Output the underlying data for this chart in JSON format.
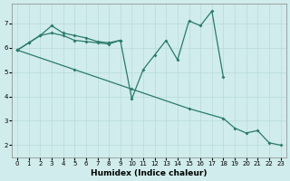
{
  "xlabel": "Humidex (Indice chaleur)",
  "bg_color": "#d0ecec",
  "grid_color": "#b8dada",
  "line_color": "#2a7a6a",
  "xlim": [
    -0.5,
    23.5
  ],
  "ylim": [
    1.5,
    7.8
  ],
  "yticks": [
    2,
    3,
    4,
    5,
    6,
    7
  ],
  "xticks": [
    0,
    1,
    2,
    3,
    4,
    5,
    6,
    7,
    8,
    9,
    10,
    11,
    12,
    13,
    14,
    15,
    16,
    17,
    18,
    19,
    20,
    21,
    22,
    23
  ],
  "line1_x": [
    0,
    1,
    2,
    3,
    4,
    5,
    6,
    7,
    8,
    9,
    10,
    11,
    12,
    13,
    14,
    15,
    16,
    17,
    18
  ],
  "line1_y": [
    5.9,
    6.2,
    6.5,
    6.9,
    6.6,
    6.5,
    6.4,
    6.25,
    6.2,
    6.3,
    3.9,
    5.1,
    5.7,
    6.3,
    5.5,
    7.1,
    6.9,
    7.5,
    4.8
  ],
  "line2_x": [
    0,
    5,
    10,
    15,
    18,
    19,
    20,
    21,
    22,
    23
  ],
  "line2_y": [
    5.9,
    5.1,
    4.3,
    3.5,
    3.1,
    2.7,
    2.5,
    2.6,
    2.1,
    2.0
  ],
  "line3_x": [
    0,
    1,
    2,
    3,
    4,
    5,
    6,
    7,
    8,
    9
  ],
  "line3_y": [
    5.9,
    6.2,
    6.5,
    6.6,
    6.5,
    6.3,
    6.25,
    6.2,
    6.15,
    6.3
  ]
}
